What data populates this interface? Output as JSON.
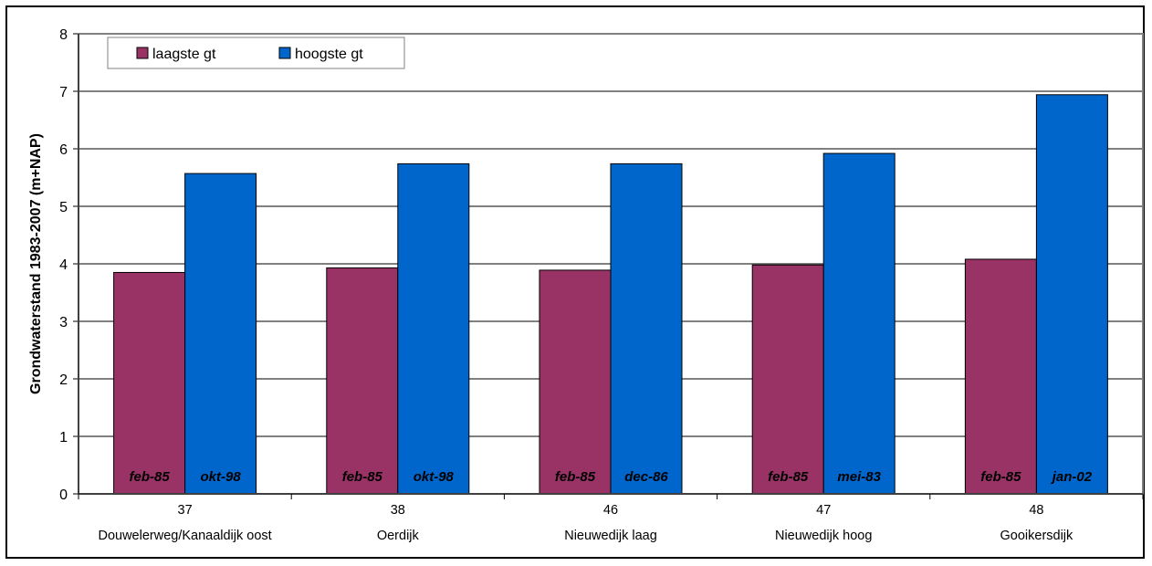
{
  "chart_data": {
    "type": "bar",
    "title": "",
    "xlabel": "",
    "ylabel": "Grondwaterstand 1983-2007 (m+NAP)",
    "ylim": [
      0,
      8
    ],
    "yticks": [
      "0",
      "1",
      "2",
      "3",
      "4",
      "5",
      "6",
      "7",
      "8"
    ],
    "grid": true,
    "legend_position": "top-left",
    "categories": [
      {
        "code": "37",
        "name": "Douwelerweg/Kanaaldijk oost"
      },
      {
        "code": "38",
        "name": "Oerdijk"
      },
      {
        "code": "46",
        "name": "Nieuwedijk laag"
      },
      {
        "code": "47",
        "name": "Nieuwedijk hoog"
      },
      {
        "code": "48",
        "name": "Gooikersdijk"
      }
    ],
    "series": [
      {
        "name": "laagste gt",
        "color": "#993366",
        "values": [
          3.85,
          3.93,
          3.89,
          3.98,
          4.08
        ],
        "labels": [
          "feb-85",
          "feb-85",
          "feb-85",
          "feb-85",
          "feb-85"
        ]
      },
      {
        "name": "hoogste gt",
        "color": "#0066CC",
        "values": [
          5.57,
          5.74,
          5.74,
          5.92,
          6.94
        ],
        "labels": [
          "okt-98",
          "okt-98",
          "dec-86",
          "mei-83",
          "jan-02"
        ]
      }
    ]
  }
}
